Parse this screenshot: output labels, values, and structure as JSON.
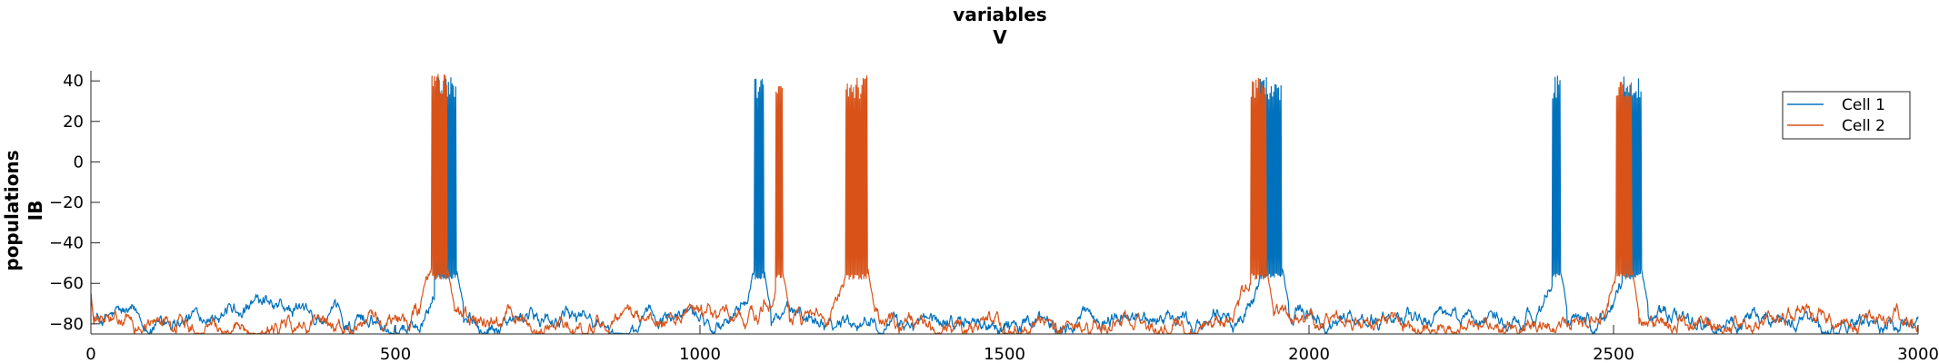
{
  "chart_data": {
    "type": "line",
    "title": [
      "variables",
      "V"
    ],
    "ylabel": [
      "populations",
      "IB"
    ],
    "xlabel": "",
    "xlim": [
      0,
      3000
    ],
    "ylim": [
      -85,
      45
    ],
    "xticks": [
      0,
      500,
      1000,
      1500,
      2000,
      2500,
      3000
    ],
    "yticks": [
      40,
      20,
      0,
      -20,
      -40,
      -60,
      -80
    ],
    "xtick_labels": [
      "0",
      "500",
      "1000",
      "1500",
      "2000",
      "2500",
      "3000"
    ],
    "ytick_labels": [
      "40",
      "20",
      "0",
      "−20",
      "−40",
      "−60",
      "−80"
    ],
    "grid": false,
    "legend_position": "top-right",
    "series": [
      {
        "name": "Cell 1",
        "color": "#0072BD",
        "baseline_mean": -78,
        "bursts": [
          {
            "start": 565,
            "end": 600,
            "peak": 42
          },
          {
            "start": 1090,
            "end": 1105,
            "peak": 42
          },
          {
            "start": 1920,
            "end": 1955,
            "peak": 42
          },
          {
            "start": 2400,
            "end": 2412,
            "peak": 43
          },
          {
            "start": 2515,
            "end": 2545,
            "peak": 43
          }
        ]
      },
      {
        "name": "Cell 2",
        "color": "#D95319",
        "baseline_mean": -80,
        "bursts": [
          {
            "start": 560,
            "end": 585,
            "peak": 44
          },
          {
            "start": 1125,
            "end": 1135,
            "peak": 44
          },
          {
            "start": 1240,
            "end": 1275,
            "peak": 43
          },
          {
            "start": 1905,
            "end": 1930,
            "peak": 42
          },
          {
            "start": 2505,
            "end": 2530,
            "peak": 42
          }
        ]
      }
    ]
  }
}
